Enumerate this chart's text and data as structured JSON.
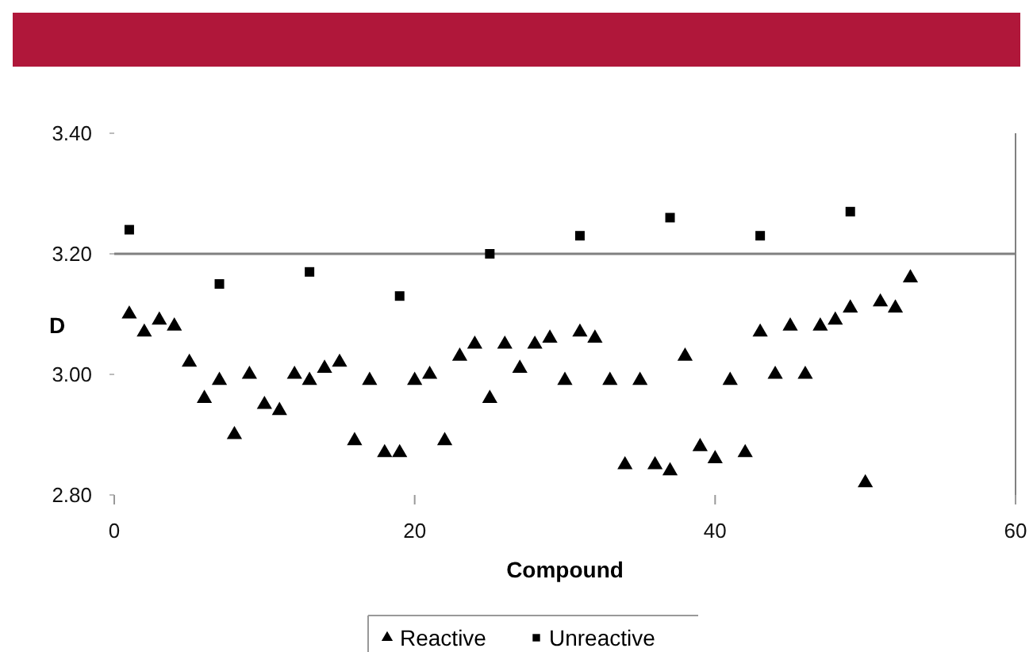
{
  "chart_data": {
    "type": "scatter",
    "xlabel": "Compound",
    "ylabel": "D",
    "xlim": [
      0,
      60
    ],
    "xticks": [
      0,
      20,
      40,
      60
    ],
    "ylim": [
      2.8,
      3.4
    ],
    "yticks": [
      {
        "value": 2.8,
        "label": "2.80"
      },
      {
        "value": 3.0,
        "label": "3.00"
      },
      {
        "value": 3.2,
        "label": "3.20"
      },
      {
        "value": 3.4,
        "label": "3.40"
      }
    ],
    "grid": false,
    "legend": "bottom",
    "ref_lines": [
      {
        "axis": "y",
        "value": 3.2,
        "color": "#808080"
      }
    ],
    "series": [
      {
        "name": "Reactive",
        "color": "#000000",
        "marker": "triangle",
        "x": [
          1,
          2,
          3,
          4,
          5,
          6,
          7,
          8,
          9,
          10,
          11,
          12,
          13,
          14,
          15,
          16,
          17,
          18,
          19,
          20,
          21,
          22,
          23,
          24,
          25,
          26,
          27,
          28,
          29,
          30,
          31,
          32,
          33,
          34,
          35,
          36,
          37,
          38,
          39,
          40,
          41,
          42,
          43,
          44,
          45,
          46,
          47,
          48,
          49,
          50,
          51,
          52,
          53
        ],
        "values": [
          3.1,
          3.07,
          3.09,
          3.08,
          3.02,
          2.96,
          2.99,
          2.9,
          3.0,
          2.95,
          2.94,
          3.0,
          2.99,
          3.01,
          3.02,
          2.89,
          2.99,
          2.87,
          2.87,
          2.99,
          3.0,
          2.89,
          3.03,
          3.05,
          2.96,
          3.05,
          3.01,
          3.05,
          3.06,
          2.99,
          3.07,
          3.06,
          2.99,
          2.85,
          2.99,
          2.85,
          2.84,
          3.03,
          2.88,
          2.86,
          2.99,
          2.87,
          3.07,
          3.0,
          3.08,
          3.0,
          3.08,
          3.09,
          3.11,
          2.82,
          3.12,
          3.11,
          3.16
        ]
      },
      {
        "name": "Unreactive",
        "color": "#000000",
        "marker": "square",
        "x": [
          1,
          7,
          13,
          19,
          25,
          31,
          37,
          43,
          49
        ],
        "values": [
          3.24,
          3.15,
          3.17,
          3.13,
          3.2,
          3.23,
          3.26,
          3.23,
          3.27
        ]
      }
    ]
  }
}
